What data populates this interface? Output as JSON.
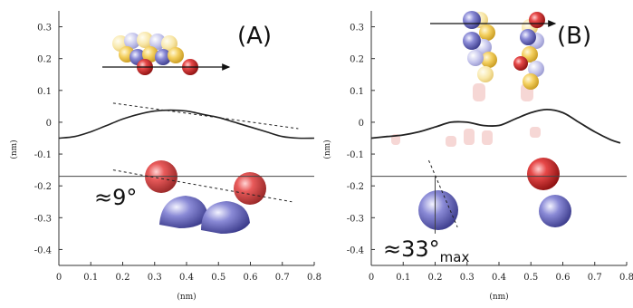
{
  "chart_data": [
    {
      "type": "line",
      "panel_label": "(A)",
      "xlabel": "(nm)",
      "ylabel": "(nm)",
      "xlim": [
        0,
        0.8
      ],
      "ylim": [
        -0.45,
        0.35
      ],
      "x_ticks": [
        "0",
        "0.1",
        "0.2",
        "0.3",
        "0.4",
        "0.5",
        "0.6",
        "0.7",
        "0.8"
      ],
      "y_ticks": [
        "-0.4",
        "-0.3",
        "-0.2",
        "-0.1",
        "0",
        "0.1",
        "0.2",
        "0.3"
      ],
      "series": [
        {
          "x": [
            0,
            0.05,
            0.1,
            0.15,
            0.2,
            0.25,
            0.3,
            0.35,
            0.4,
            0.45,
            0.5,
            0.55,
            0.6,
            0.65,
            0.7,
            0.75,
            0.8
          ],
          "y": [
            -0.05,
            -0.045,
            -0.03,
            -0.01,
            0.01,
            0.025,
            0.035,
            0.038,
            0.035,
            0.025,
            0.015,
            0.0,
            -0.015,
            -0.03,
            -0.045,
            -0.05,
            -0.05
          ]
        }
      ],
      "reference_line_y": -0.17,
      "dashed_lines": [
        {
          "x": [
            0.17,
            0.75
          ],
          "y": [
            0.06,
            -0.02
          ]
        },
        {
          "x": [
            0.17,
            0.73
          ],
          "y": [
            -0.15,
            -0.25
          ]
        }
      ],
      "annotations": [
        {
          "text": "≈9°",
          "x": 0.05,
          "y": -0.23
        }
      ]
    },
    {
      "type": "line",
      "panel_label": "(B)",
      "xlabel": "(nm)",
      "ylabel": "(nm)",
      "xlim": [
        0,
        0.8
      ],
      "ylim": [
        -0.45,
        0.35
      ],
      "x_ticks": [
        "0",
        "0.1",
        "0.2",
        "0.3",
        "0.4",
        "0.5",
        "0.6",
        "0.7",
        "0.8"
      ],
      "y_ticks": [
        "-0.4",
        "-0.3",
        "-0.2",
        "-0.1",
        "0",
        "0.1",
        "0.2",
        "0.3"
      ],
      "series": [
        {
          "x": [
            0,
            0.05,
            0.1,
            0.15,
            0.2,
            0.25,
            0.3,
            0.35,
            0.4,
            0.45,
            0.5,
            0.55,
            0.6,
            0.65,
            0.7,
            0.75,
            0.78
          ],
          "y": [
            -0.05,
            -0.045,
            -0.04,
            -0.03,
            -0.015,
            0.0,
            0.0,
            -0.01,
            -0.01,
            0.01,
            0.03,
            0.04,
            0.03,
            0.0,
            -0.03,
            -0.055,
            -0.065
          ]
        }
      ],
      "reference_line_y": -0.17,
      "dashed_lines": [
        {
          "x": [
            0.18,
            0.27
          ],
          "y": [
            -0.12,
            -0.33
          ]
        }
      ],
      "annotations": [
        {
          "text": "≈33°",
          "sub": "max",
          "x": 0.05,
          "y": -0.38
        }
      ]
    }
  ],
  "colors": {
    "oxygen": "#d42a2a",
    "carbon": "#6f6fc4",
    "sulfur": "#f2c94c",
    "ghost": "#f0b7b4",
    "curve": "#222222",
    "axis": "#333333"
  }
}
